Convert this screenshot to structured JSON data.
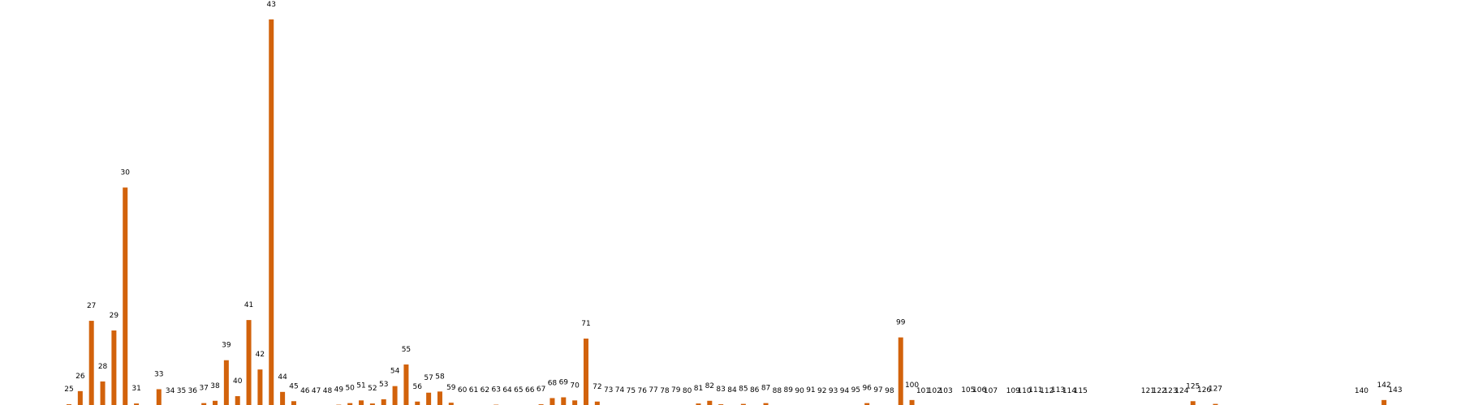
{
  "chart_data": {
    "type": "bar",
    "title": "",
    "xlabel": "",
    "ylabel": "",
    "grid": false,
    "legend": "none",
    "color": "#d2620b",
    "ylim": [
      0,
      100
    ],
    "categories": [
      "25",
      "26",
      "27",
      "28",
      "29",
      "30",
      "31",
      "33",
      "34",
      "35",
      "36",
      "37",
      "38",
      "39",
      "40",
      "41",
      "42",
      "43",
      "44",
      "45",
      "46",
      "47",
      "48",
      "49",
      "50",
      "51",
      "52",
      "53",
      "54",
      "55",
      "56",
      "57",
      "58",
      "59",
      "60",
      "61",
      "62",
      "63",
      "64",
      "65",
      "66",
      "67",
      "68",
      "69",
      "70",
      "71",
      "72",
      "73",
      "74",
      "75",
      "76",
      "77",
      "78",
      "79",
      "80",
      "81",
      "82",
      "83",
      "84",
      "85",
      "86",
      "87",
      "88",
      "89",
      "90",
      "91",
      "92",
      "93",
      "94",
      "95",
      "96",
      "97",
      "98",
      "99",
      "100",
      "101",
      "102",
      "103",
      "105",
      "106",
      "107",
      "109",
      "110",
      "111",
      "112",
      "113",
      "114",
      "115",
      "121",
      "122",
      "123",
      "124",
      "125",
      "126",
      "127",
      "140",
      "142",
      "143"
    ],
    "values": [
      0.4,
      3.8,
      22,
      6.3,
      19.5,
      56.5,
      0.6,
      4.3,
      0,
      0,
      0,
      0.7,
      1.3,
      11.8,
      2.5,
      22.2,
      9.4,
      100,
      3.6,
      1.2,
      0,
      0,
      0,
      0.3,
      0.7,
      1.4,
      0.6,
      1.7,
      5.1,
      10.7,
      1.1,
      3.4,
      3.7,
      0.8,
      0.2,
      0.2,
      0.2,
      0.3,
      0.2,
      0.2,
      0.2,
      0.4,
      2.0,
      2.2,
      1.4,
      17.4,
      1.1,
      0.2,
      0.2,
      0,
      0,
      0.2,
      0,
      0.2,
      0,
      0.6,
      1.3,
      0.4,
      0.2,
      0.5,
      0.2,
      0.7,
      0,
      0.2,
      0,
      0.2,
      0,
      0,
      0,
      0.2,
      0.7,
      0.2,
      0,
      17.7,
      1.5,
      0,
      0,
      0,
      0.2,
      0.2,
      0,
      0,
      0,
      0.2,
      0,
      0.2,
      0,
      0,
      0,
      0,
      0,
      0,
      1.2,
      0.2,
      0.5,
      0,
      1.5,
      0.2
    ]
  }
}
